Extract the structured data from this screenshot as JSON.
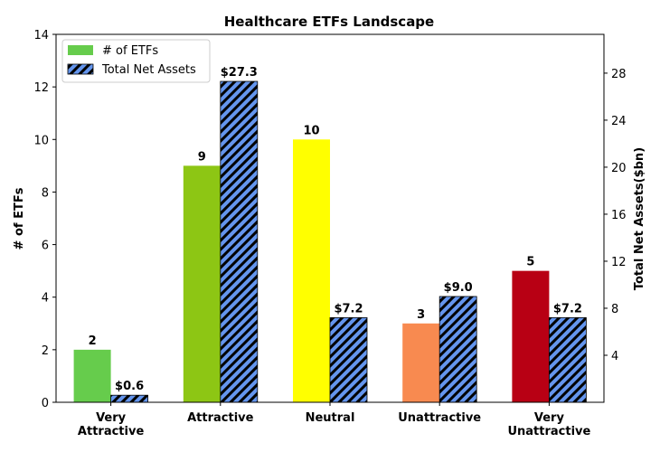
{
  "chart_data": {
    "type": "bar",
    "title": "Healthcare ETFs Landscape",
    "categories": [
      [
        "Very",
        "Attractive"
      ],
      [
        "Attractive"
      ],
      [
        "Neutral"
      ],
      [
        "Unattractive"
      ],
      [
        "Very",
        "Unattractive"
      ]
    ],
    "ylabel": "# of ETFs",
    "y2label": "Total Net Assets($bn)",
    "ylim": [
      0,
      14
    ],
    "y2lim": [
      0,
      31.3
    ],
    "yticks": [
      0,
      2,
      4,
      6,
      8,
      10,
      12,
      14
    ],
    "y2ticks": [
      4,
      8,
      12,
      16,
      20,
      24,
      28
    ],
    "series": [
      {
        "name": "# of ETFs",
        "axis": "left",
        "values": [
          2,
          9,
          10,
          3,
          5
        ],
        "labels": [
          "2",
          "9",
          "10",
          "3",
          "5"
        ],
        "colors": [
          "#66cc4c",
          "#8dc614",
          "#ffff00",
          "#f88a50",
          "#b80014"
        ],
        "legend_color": "#66cc4c"
      },
      {
        "name": "Total Net Assets",
        "axis": "right",
        "values": [
          0.6,
          27.3,
          7.2,
          9.0,
          7.2
        ],
        "labels": [
          "$0.6",
          "$27.3",
          "$7.2",
          "$9.0",
          "$7.2"
        ],
        "color": "#6495ed",
        "hatch": "diagonal"
      }
    ],
    "legend_position": "top-left",
    "grid": false
  }
}
